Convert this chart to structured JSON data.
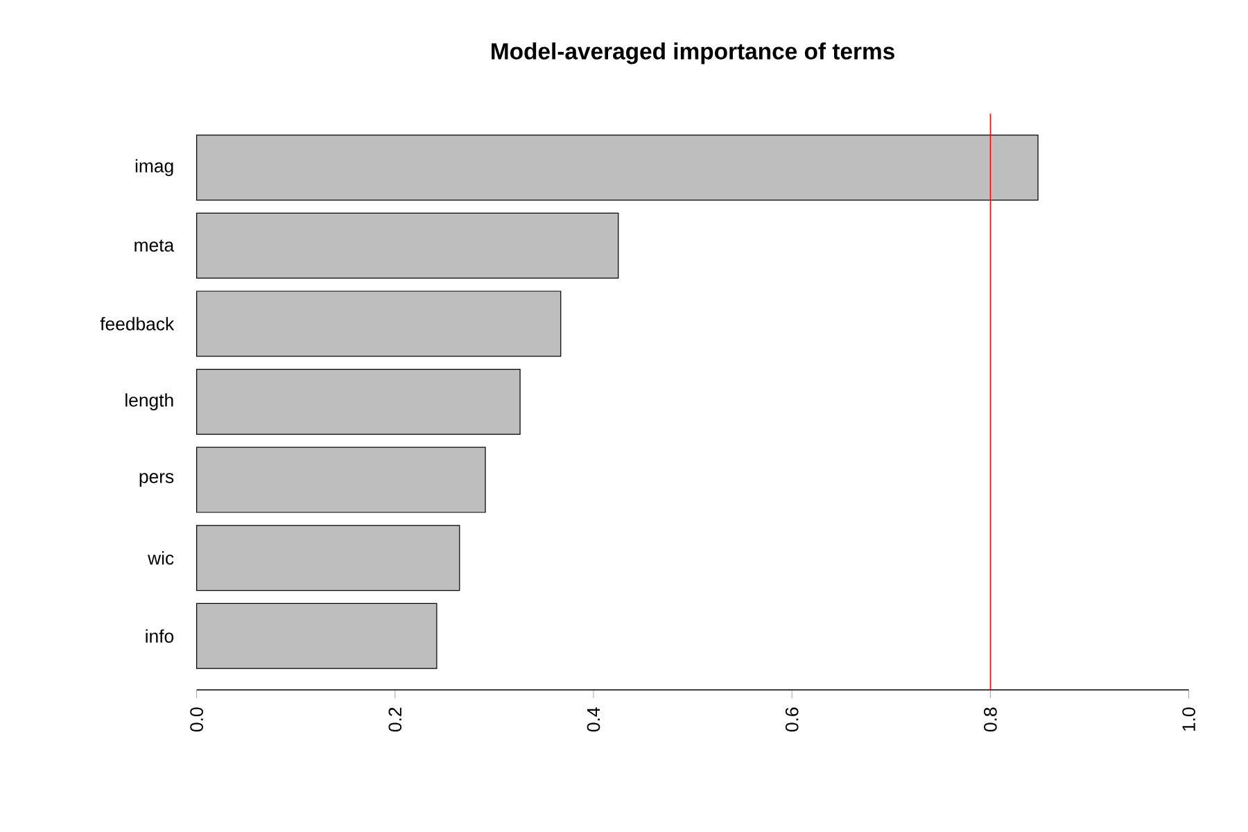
{
  "chart_data": {
    "type": "bar",
    "orientation": "horizontal",
    "title": "Model-averaged importance of terms",
    "categories": [
      "imag",
      "meta",
      "feedback",
      "length",
      "pers",
      "wic",
      "info"
    ],
    "values": [
      0.848,
      0.425,
      0.367,
      0.326,
      0.291,
      0.265,
      0.242
    ],
    "color": "#bebebe",
    "xlim": [
      0,
      1
    ],
    "xticks": [
      {
        "value": 0,
        "label": "0.0"
      },
      0.2,
      0.4,
      0.6,
      0.8,
      {
        "value": 1,
        "label": "1.0"
      }
    ],
    "ref_lines": [
      {
        "axis": "x",
        "value": 0.8,
        "color": "#ff0000"
      }
    ]
  }
}
